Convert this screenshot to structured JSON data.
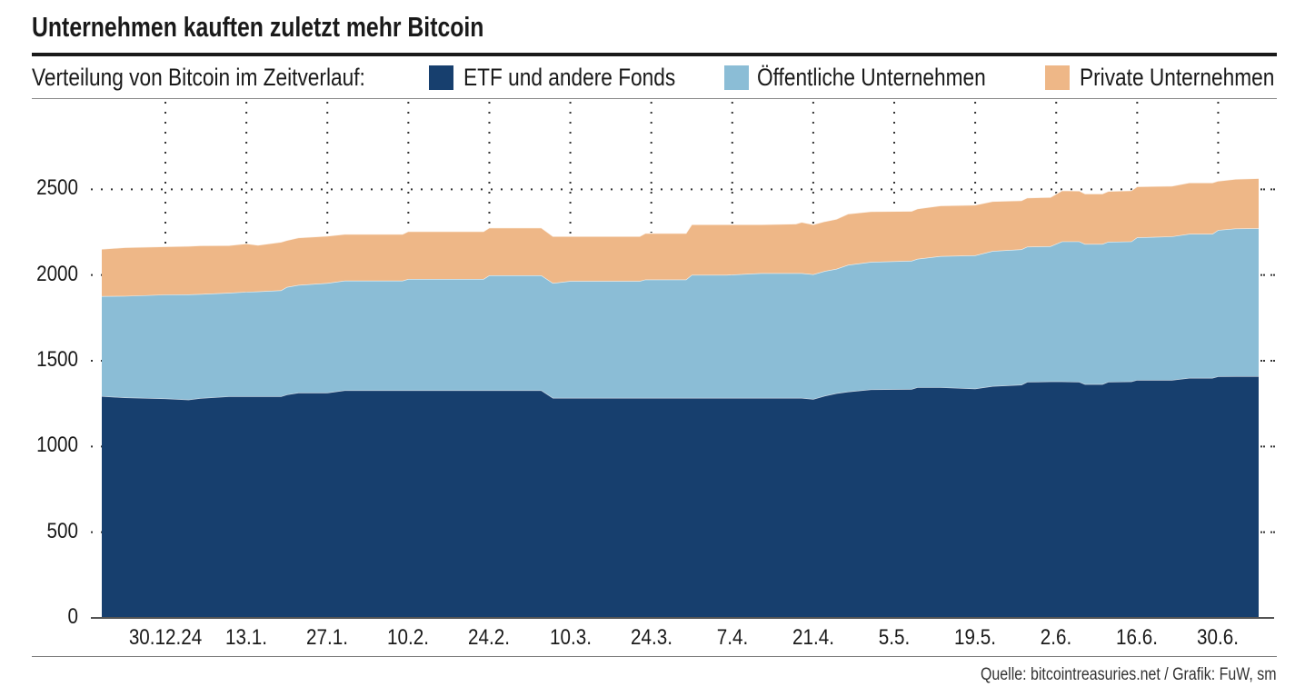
{
  "header": {
    "title": "Unternehmen kauften zuletzt mehr Bitcoin",
    "subtitle": "Verteilung von Bitcoin im Zeitverlauf:"
  },
  "footer": {
    "source": "Quelle: bitcointreasuries.net / Grafik: FuW, sm"
  },
  "chart_data": {
    "type": "area",
    "stacked": true,
    "title": "Unternehmen kauften zuletzt mehr Bitcoin",
    "subtitle": "Verteilung von Bitcoin im Zeitverlauf:",
    "xlabel": "",
    "ylabel": "",
    "legend_placement": "top",
    "grid": "dotted",
    "ylim": [
      0,
      3000
    ],
    "xlim": [
      "2024-12-19",
      "2025-07-07"
    ],
    "y_ticks": [
      0,
      500,
      1000,
      1500,
      2000,
      2500
    ],
    "x_ticks": [
      {
        "date": "2024-12-30",
        "label": "30.12.24"
      },
      {
        "date": "2025-01-13",
        "label": "13.1."
      },
      {
        "date": "2025-01-27",
        "label": "27.1."
      },
      {
        "date": "2025-02-10",
        "label": "10.2."
      },
      {
        "date": "2025-02-24",
        "label": "24.2."
      },
      {
        "date": "2025-03-10",
        "label": "10.3."
      },
      {
        "date": "2025-03-24",
        "label": "24.3."
      },
      {
        "date": "2025-04-07",
        "label": "7.4."
      },
      {
        "date": "2025-04-21",
        "label": "21.4."
      },
      {
        "date": "2025-05-05",
        "label": "5.5."
      },
      {
        "date": "2025-05-19",
        "label": "19.5."
      },
      {
        "date": "2025-06-02",
        "label": "2.6."
      },
      {
        "date": "2025-06-16",
        "label": "16.6."
      },
      {
        "date": "2025-06-30",
        "label": "30.6."
      }
    ],
    "x": [
      "2024-12-19",
      "2024-12-23",
      "2024-12-30",
      "2025-01-03",
      "2025-01-05",
      "2025-01-10",
      "2025-01-13",
      "2025-01-15",
      "2025-01-19",
      "2025-01-20",
      "2025-01-22",
      "2025-01-27",
      "2025-01-30",
      "2025-02-09",
      "2025-02-10",
      "2025-02-23",
      "2025-02-24",
      "2025-03-05",
      "2025-03-07",
      "2025-03-10",
      "2025-03-22",
      "2025-03-23",
      "2025-03-30",
      "2025-03-31",
      "2025-04-06",
      "2025-04-12",
      "2025-04-18",
      "2025-04-19",
      "2025-04-21",
      "2025-04-23",
      "2025-04-25",
      "2025-04-27",
      "2025-05-01",
      "2025-05-08",
      "2025-05-09",
      "2025-05-13",
      "2025-05-19",
      "2025-05-22",
      "2025-05-27",
      "2025-05-28",
      "2025-06-01",
      "2025-06-03",
      "2025-06-06",
      "2025-06-07",
      "2025-06-10",
      "2025-06-11",
      "2025-06-15",
      "2025-06-16",
      "2025-06-22",
      "2025-06-25",
      "2025-06-29",
      "2025-06-30",
      "2025-07-03",
      "2025-07-07"
    ],
    "series": [
      {
        "name": "ETF und andere Fonds",
        "color": "#173f6e",
        "values": [
          1294,
          1286,
          1280,
          1273,
          1282,
          1292,
          1292,
          1292,
          1292,
          1303,
          1314,
          1314,
          1328,
          1328,
          1328,
          1328,
          1328,
          1328,
          1283,
          1283,
          1283,
          1283,
          1283,
          1283,
          1283,
          1283,
          1283,
          1283,
          1277,
          1296,
          1310,
          1320,
          1333,
          1335,
          1345,
          1345,
          1338,
          1352,
          1360,
          1377,
          1379,
          1379,
          1377,
          1363,
          1363,
          1377,
          1379,
          1388,
          1388,
          1400,
          1400,
          1409,
          1410,
          1410
        ]
      },
      {
        "name": "Öffentliche Unternehmen",
        "color": "#8bbdd6",
        "values": [
          583,
          592,
          606,
          614,
          607,
          604,
          610,
          612,
          619,
          627,
          628,
          639,
          639,
          639,
          649,
          649,
          670,
          670,
          670,
          682,
          682,
          691,
          691,
          718,
          718,
          728,
          728,
          728,
          727,
          727,
          726,
          739,
          743,
          748,
          749,
          765,
          777,
          788,
          790,
          788,
          789,
          817,
          819,
          818,
          818,
          817,
          817,
          831,
          837,
          840,
          840,
          853,
          861,
          862
        ]
      },
      {
        "name": "Private Unternehmen",
        "color": "#eeb787",
        "values": [
          275,
          283,
          280,
          282,
          283,
          277,
          282,
          271,
          282,
          273,
          276,
          275,
          272,
          272,
          278,
          278,
          278,
          278,
          273,
          261,
          261,
          270,
          270,
          294,
          294,
          284,
          288,
          298,
          291,
          290,
          291,
          298,
          295,
          290,
          293,
          295,
          294,
          290,
          285,
          286,
          286,
          297,
          295,
          293,
          293,
          295,
          297,
          297,
          295,
          299,
          299,
          287,
          289,
          292
        ]
      }
    ]
  }
}
